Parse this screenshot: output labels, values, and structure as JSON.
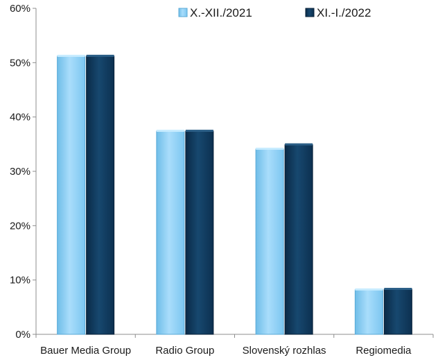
{
  "chart_data": {
    "type": "bar",
    "categories": [
      "Bauer Media Group",
      "Radio Group",
      "Slovenský rozhlas",
      "Regiomedia"
    ],
    "series": [
      {
        "name": "X.-XII./2021",
        "values": [
          51.2,
          37.4,
          34.1,
          8.2
        ],
        "color": "#8fd1f8"
      },
      {
        "name": "XI.-I./2022",
        "values": [
          51.2,
          37.4,
          34.9,
          8.3
        ],
        "color": "#0f3a5e"
      }
    ],
    "y_ticks": [
      "0%",
      "10%",
      "20%",
      "30%",
      "40%",
      "50%",
      "60%"
    ],
    "ylim": [
      0,
      60
    ],
    "grid": false,
    "legend_position": "top"
  }
}
